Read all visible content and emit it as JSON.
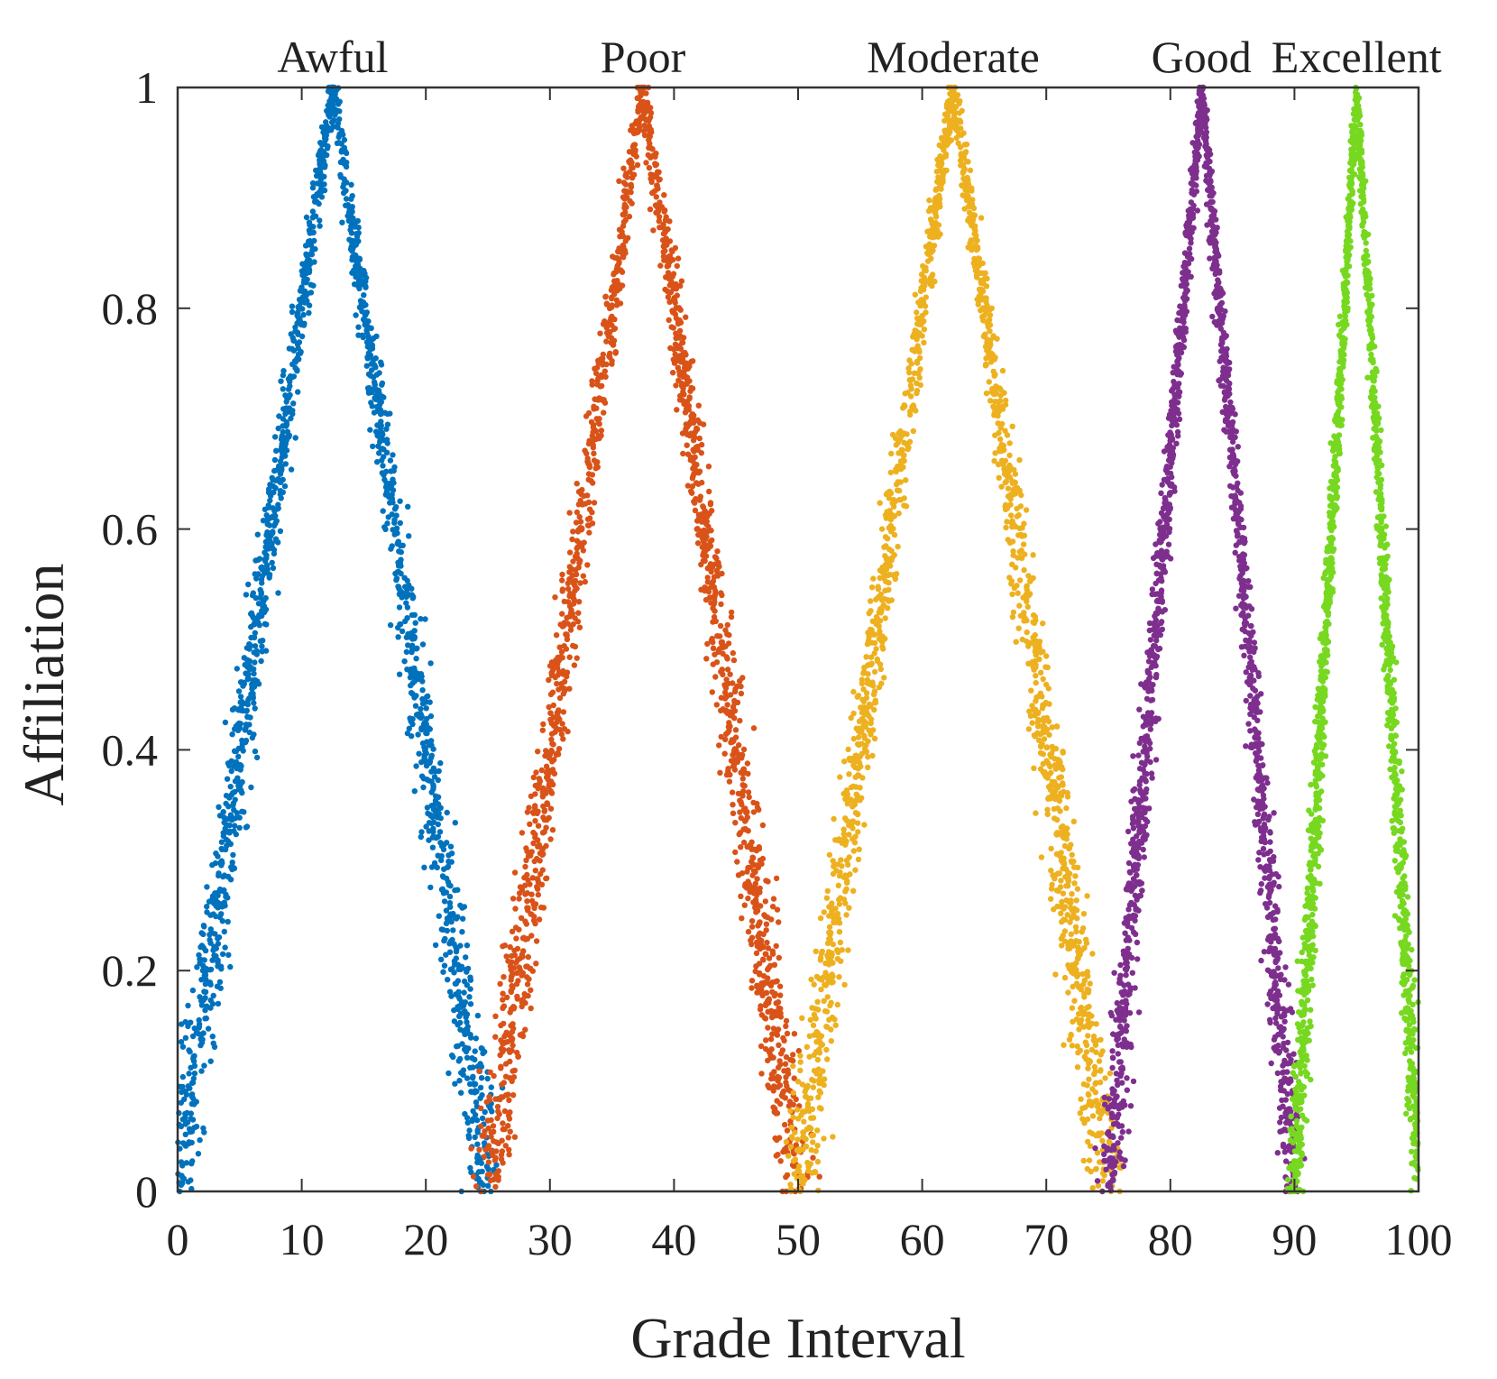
{
  "chart_data": {
    "type": "scatter",
    "title": "",
    "xlabel": "Grade Interval",
    "ylabel": "Affiliation",
    "xlim": [
      0,
      100
    ],
    "ylim": [
      0,
      1
    ],
    "xticks": [
      0,
      10,
      20,
      30,
      40,
      50,
      60,
      70,
      80,
      90,
      100
    ],
    "xtick_labels": [
      "0",
      "10",
      "20",
      "30",
      "40",
      "50",
      "60",
      "70",
      "80",
      "90",
      "100"
    ],
    "yticks": [
      0,
      0.2,
      0.4,
      0.6,
      0.8,
      1
    ],
    "ytick_labels": [
      "0",
      "0.2",
      "0.4",
      "0.6",
      "0.8",
      "1"
    ],
    "grid": false,
    "legend": "labels above each peak",
    "series": [
      {
        "name": "Awful",
        "color": "#0072BD",
        "shape": "triangular cloud",
        "x": [
          0,
          12.5,
          25
        ],
        "y": [
          0,
          1,
          0
        ]
      },
      {
        "name": "Poor",
        "color": "#D95319",
        "shape": "triangular cloud",
        "x": [
          25,
          37.5,
          50
        ],
        "y": [
          0,
          1,
          0
        ]
      },
      {
        "name": "Moderate",
        "color": "#EDB120",
        "shape": "triangular cloud",
        "x": [
          50,
          62.5,
          75
        ],
        "y": [
          0,
          1,
          0
        ]
      },
      {
        "name": "Good",
        "color": "#7E2F8E",
        "shape": "triangular cloud",
        "x": [
          75,
          82.5,
          90
        ],
        "y": [
          0,
          1,
          0
        ]
      },
      {
        "name": "Excellent",
        "color": "#77D820",
        "shape": "triangular cloud",
        "x": [
          90,
          95,
          100
        ],
        "y": [
          0,
          1,
          0
        ]
      }
    ]
  }
}
